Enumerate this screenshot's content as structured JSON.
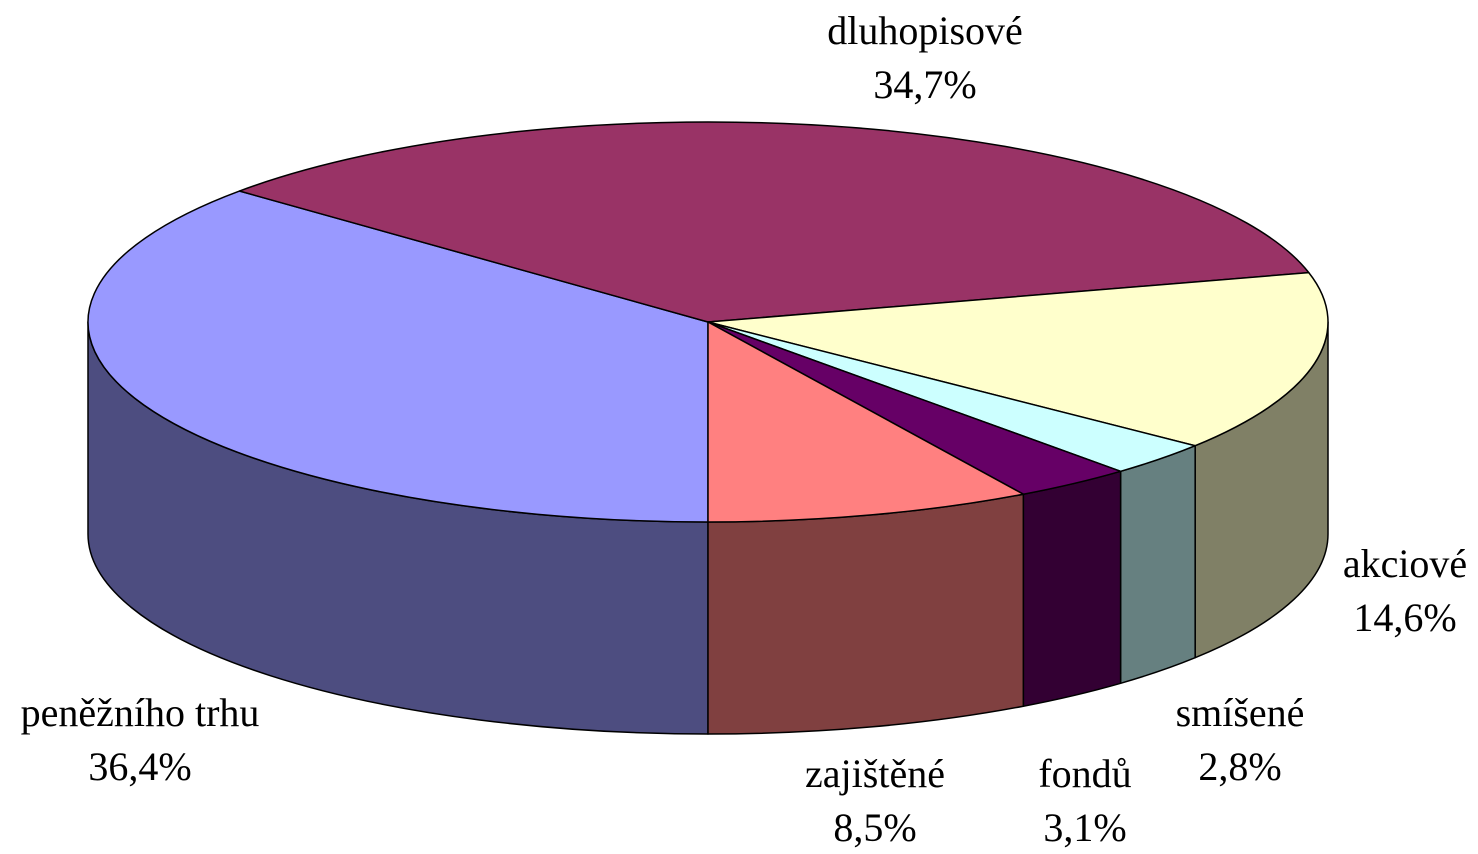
{
  "chart_data": {
    "type": "pie3d",
    "categories": [
      "peněžního trhu",
      "dluhopisové",
      "akciové",
      "smíšené",
      "fondů",
      "zajištěné"
    ],
    "values": [
      36.4,
      34.7,
      14.6,
      2.8,
      3.1,
      8.5
    ],
    "value_labels": [
      "36,4%",
      "34,7%",
      "14,6%",
      "2,8%",
      "3,1%",
      "8,5%"
    ],
    "colors": [
      "#9999ff",
      "#993366",
      "#ffffcc",
      "#ccffff",
      "#660066",
      "#ff8080"
    ]
  }
}
